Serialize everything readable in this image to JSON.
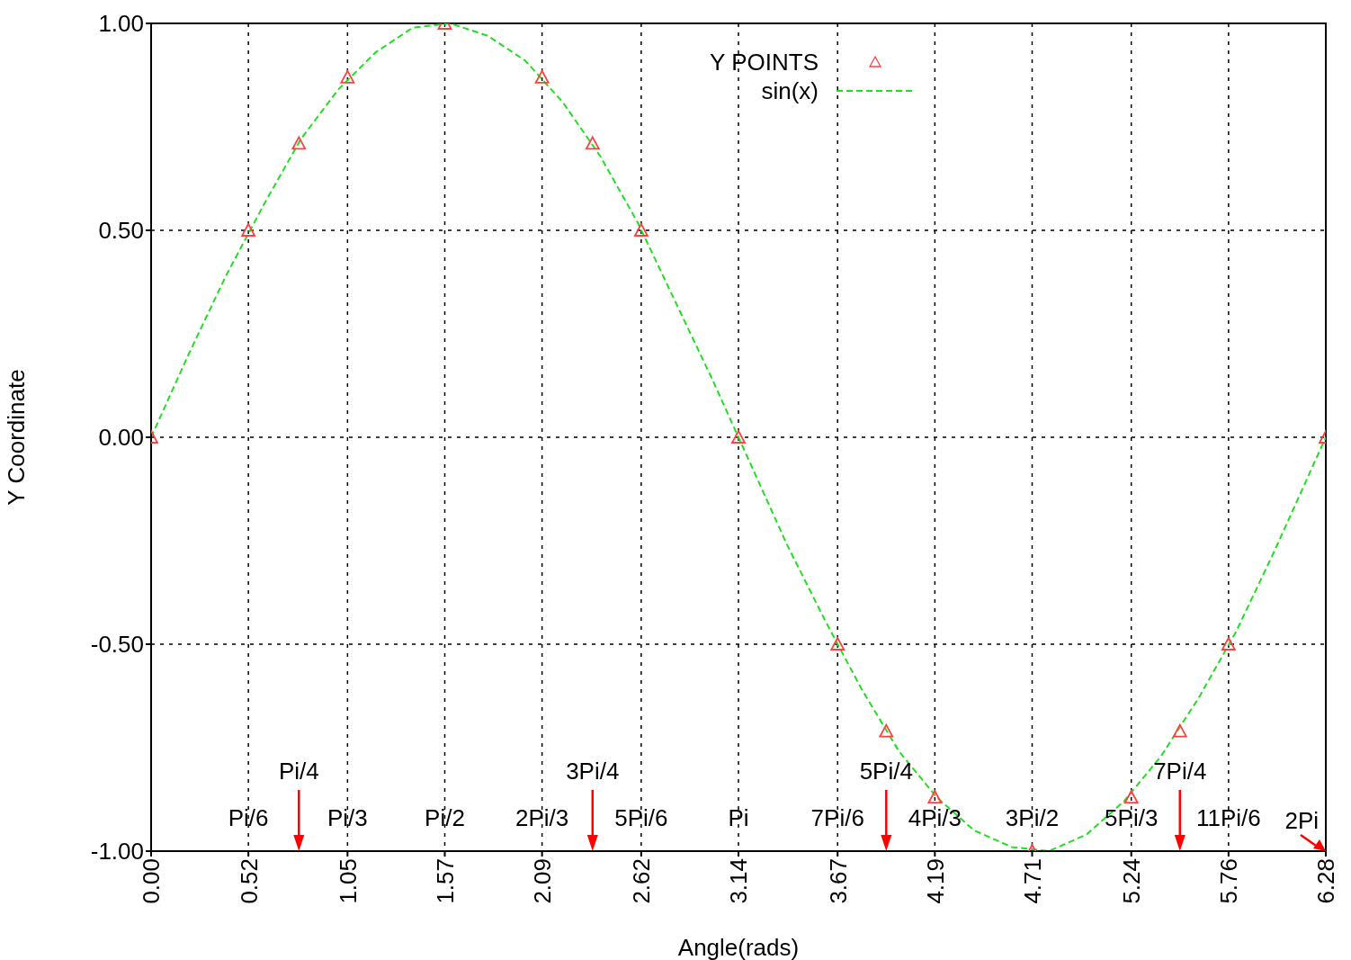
{
  "chart_data": {
    "type": "scatter",
    "xlabel": "Angle(rads)",
    "ylabel": "Y Coordinate",
    "xlim": [
      0,
      6.28
    ],
    "ylim": [
      -1,
      1
    ],
    "xticks": [
      {
        "value": 0,
        "label": "0.00"
      },
      0.52,
      1.05,
      1.57,
      2.09,
      2.62,
      3.14,
      3.67,
      4.19,
      4.71,
      5.24,
      5.76,
      6.28
    ],
    "yticks": [
      {
        "value": -1,
        "label": "-1.00"
      },
      {
        "value": -0.5,
        "label": "-0.50"
      },
      {
        "value": 0,
        "label": "0.00"
      },
      {
        "value": 0.5,
        "label": "0.50"
      },
      {
        "value": 1,
        "label": "1.00"
      }
    ],
    "grid": true,
    "legend": "top right",
    "series": [
      {
        "name": "Y POINTS",
        "color": "#ff4040",
        "marker": "triangle",
        "x": [
          0,
          0.52,
          0.79,
          1.05,
          1.57,
          2.09,
          2.36,
          2.62,
          3.14,
          3.67,
          3.93,
          4.19,
          4.71,
          5.24,
          5.5,
          5.76,
          6.28
        ],
        "values": [
          0,
          0.5,
          0.71,
          0.87,
          1,
          0.87,
          0.71,
          0.5,
          0,
          -0.5,
          -0.71,
          -0.87,
          -1,
          -0.87,
          -0.71,
          -0.5,
          0
        ]
      },
      {
        "name": "sin(x)",
        "type": "line",
        "color": "#22dd22",
        "line_style": "dashed",
        "x": [
          0,
          0.2,
          0.4,
          0.6,
          0.8,
          1.0,
          1.2,
          1.4,
          1.6,
          1.8,
          2.0,
          2.2,
          2.4,
          2.6,
          2.8,
          3.0,
          3.2,
          3.4,
          3.6,
          3.8,
          4.0,
          4.2,
          4.4,
          4.6,
          4.8,
          5.0,
          5.2,
          5.4,
          5.6,
          5.8,
          6.0,
          6.2,
          6.28
        ],
        "values": [
          0,
          0.2,
          0.39,
          0.56,
          0.72,
          0.84,
          0.93,
          0.99,
          1,
          0.97,
          0.91,
          0.81,
          0.68,
          0.52,
          0.33,
          0.14,
          -0.06,
          -0.26,
          -0.44,
          -0.61,
          -0.76,
          -0.87,
          -0.95,
          -0.99,
          -1,
          -0.96,
          -0.88,
          -0.77,
          -0.63,
          -0.47,
          -0.28,
          -0.08,
          0
        ]
      }
    ],
    "annotations": [
      "Pi/6",
      "Pi/4",
      "Pi/3",
      "Pi/2",
      "2Pi/3",
      "3Pi/4",
      "5Pi/6",
      "Pi",
      "7Pi/6",
      "5Pi/4",
      "4Pi/3",
      "3Pi/2",
      "5Pi/3",
      "7Pi/4",
      "11Pi/6",
      "2Pi"
    ]
  }
}
